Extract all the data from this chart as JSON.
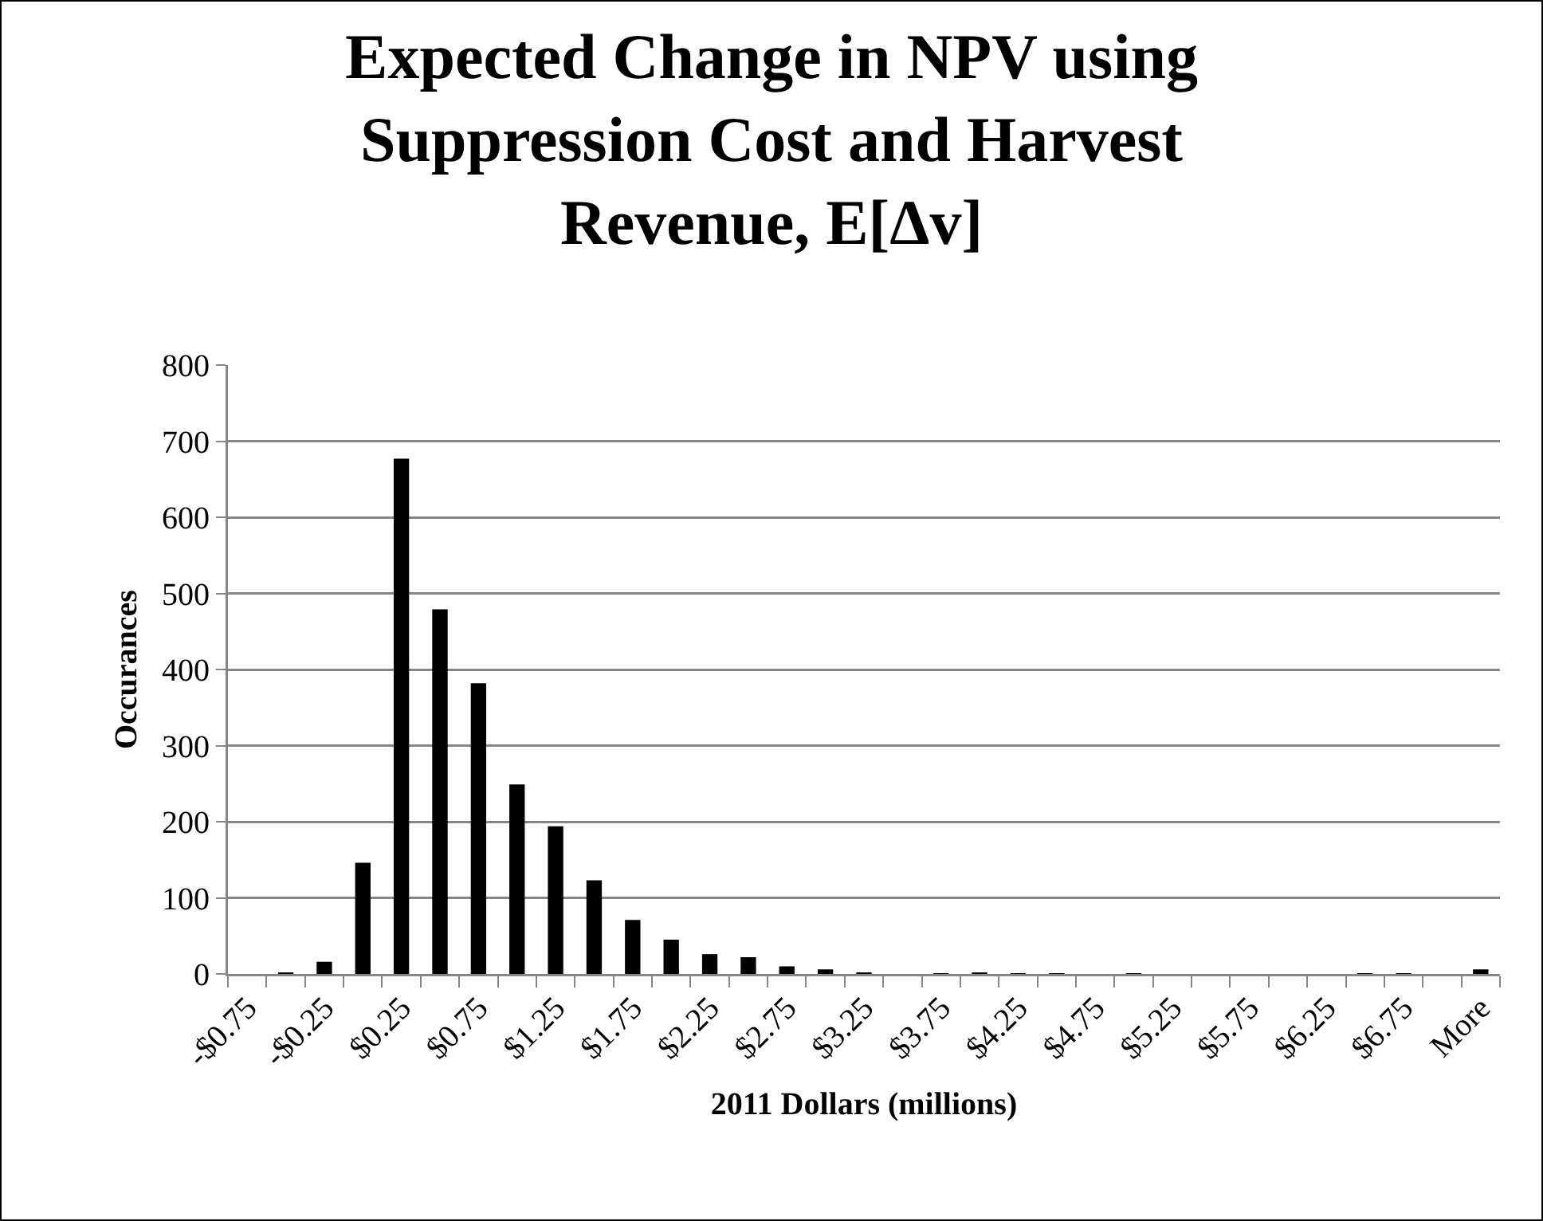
{
  "chart_data": {
    "type": "bar",
    "title": "Expected Change in NPV using Suppression Cost and Harvest Revenue, E[Δv]",
    "xlabel": "2011 Dollars (millions)",
    "ylabel": "Occurances",
    "categories": [
      "-$0.75",
      null,
      "-$0.25",
      null,
      "$0.25",
      null,
      "$0.75",
      null,
      "$1.25",
      null,
      "$1.75",
      null,
      "$2.25",
      null,
      "$2.75",
      null,
      "$3.25",
      null,
      "$3.75",
      null,
      "$4.25",
      null,
      "$4.75",
      null,
      "$5.25",
      null,
      "$5.75",
      null,
      "$6.25",
      null,
      "$6.75",
      null,
      "More"
    ],
    "values": [
      0,
      2,
      16,
      146,
      677,
      479,
      382,
      249,
      194,
      123,
      71,
      45,
      26,
      22,
      10,
      6,
      2,
      0,
      1,
      2,
      1,
      1,
      0,
      1,
      0,
      0,
      0,
      0,
      0,
      1,
      1,
      0,
      6
    ],
    "color": "#000000",
    "ylim": [
      0,
      800
    ],
    "yticks": [
      0,
      100,
      200,
      300,
      400,
      500,
      600,
      700,
      800
    ],
    "grid": "y"
  }
}
